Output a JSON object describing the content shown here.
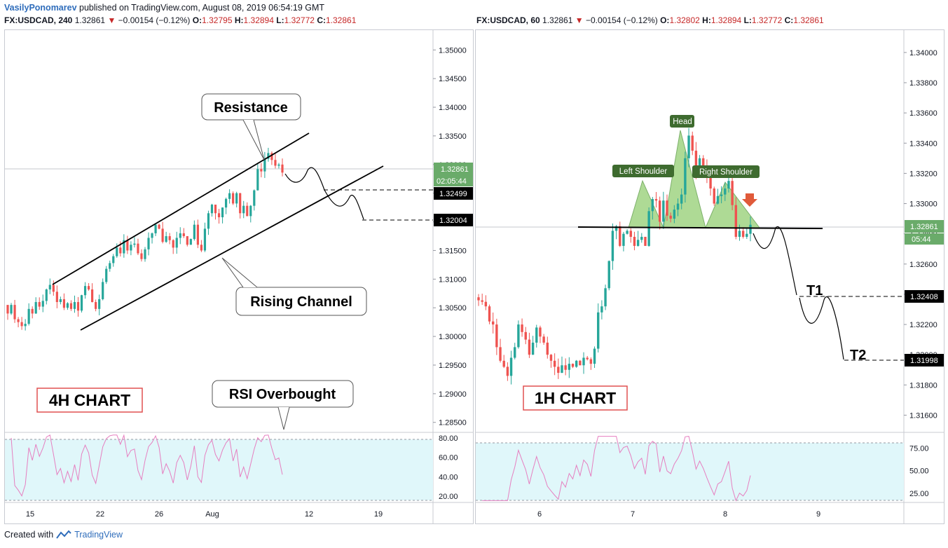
{
  "header": {
    "author": "VasilyPonomarev",
    "published": "published on TradingView.com, August 08, 2019 06:54:19 GMT"
  },
  "footer": {
    "created_with": "Created with",
    "brand": "TradingView"
  },
  "colors": {
    "up": "#26a69a",
    "down": "#ef5350",
    "green_fill": "#a5d68a",
    "rsi_band": "#e0f7fa",
    "rsi_line": "#e67fc0"
  },
  "left": {
    "symbol_line": {
      "sym": "FX:USDCAD, 240",
      "last": "1.32861",
      "change": "−0.00154 (−0.12%)",
      "o_l": "O:",
      "o": "1.32795",
      "h_l": "H:",
      "h": "1.32894",
      "l_l": "L:",
      "l": "1.32772",
      "c_l": "C:",
      "c": "1.32861"
    },
    "price_labels": {
      "last": "1.32861",
      "countdown": "02:05:44",
      "level1": "1.32499",
      "level2": "1.32004"
    },
    "annotations": {
      "resistance": "Resistance",
      "channel": "Rising Channel",
      "rsi": "RSI Overbought",
      "chart_label": "4H CHART"
    }
  },
  "right": {
    "symbol_line": {
      "sym": "FX:USDCAD, 60",
      "last": "1.32861",
      "change": "−0.00154 (−0.12%)",
      "o_l": "O:",
      "o": "1.32802",
      "h_l": "H:",
      "h": "1.32894",
      "l_l": "L:",
      "l": "1.32772",
      "c_l": "C:",
      "c": "1.32861"
    },
    "price_labels": {
      "last": "1.32861",
      "countdown": "05:44",
      "t1_level": "1.32408",
      "t2_level": "1.31998"
    },
    "annotations": {
      "head": "Head",
      "left_shoulder": "Left Shoulder",
      "right_shoulder": "Right Shoulder",
      "t1": "T1",
      "t2": "T2",
      "chart_label": "1H CHART"
    }
  },
  "chart_data": [
    {
      "type": "candlestick",
      "symbol": "FX:USDCAD",
      "interval": "240",
      "ylim": [
        1.2835,
        1.3515
      ],
      "y_ticks": [
        "1.35000",
        "1.34500",
        "1.34000",
        "1.33500",
        "1.33000",
        "1.32500",
        "1.32000",
        "1.31500",
        "1.31000",
        "1.30500",
        "1.30000",
        "1.29500",
        "1.29000",
        "1.28500"
      ],
      "x_ticks": [
        "15",
        "22",
        "26",
        "Aug",
        "12",
        "19"
      ],
      "close_series": [
        1.304,
        1.3055,
        1.303,
        1.3025,
        1.3018,
        1.3022,
        1.3048,
        1.304,
        1.306,
        1.3052,
        1.3062,
        1.3082,
        1.309,
        1.3078,
        1.306,
        1.3065,
        1.305,
        1.3058,
        1.3048,
        1.306,
        1.3045,
        1.3072,
        1.3088,
        1.3082,
        1.306,
        1.3048,
        1.3065,
        1.3095,
        1.3118,
        1.3128,
        1.314,
        1.3155,
        1.3145,
        1.3168,
        1.315,
        1.316,
        1.3162,
        1.3145,
        1.3135,
        1.3152,
        1.3172,
        1.318,
        1.3195,
        1.3188,
        1.3165,
        1.3175,
        1.3168,
        1.3155,
        1.3172,
        1.318,
        1.3175,
        1.316,
        1.317,
        1.3195,
        1.316,
        1.315,
        1.3188,
        1.3215,
        1.323,
        1.3215,
        1.3208,
        1.3225,
        1.324,
        1.325,
        1.3232,
        1.325,
        1.3215,
        1.3228,
        1.321,
        1.3228,
        1.3255,
        1.3292,
        1.3288,
        1.331,
        1.332,
        1.3308,
        1.3298,
        1.33,
        1.3286
      ],
      "rsi": {
        "ylim": [
          15,
          85
        ],
        "ticks": [
          "80.00",
          "60.00",
          "40.00",
          "20.00"
        ],
        "bands": [
          80,
          20
        ]
      }
    },
    {
      "type": "candlestick",
      "symbol": "FX:USDCAD",
      "interval": "60",
      "ylim": [
        1.315,
        1.3412
      ],
      "y_ticks": [
        "1.34000",
        "1.33800",
        "1.33600",
        "1.33400",
        "1.33200",
        "1.33000",
        "1.32800",
        "1.32600",
        "1.32400",
        "1.32200",
        "1.32000",
        "1.31800",
        "1.31600"
      ],
      "x_ticks": [
        "6",
        "7",
        "8",
        "9"
      ],
      "close_series": [
        1.3236,
        1.3235,
        1.3232,
        1.3222,
        1.322,
        1.3205,
        1.3196,
        1.3192,
        1.3186,
        1.3198,
        1.3205,
        1.322,
        1.3215,
        1.321,
        1.32,
        1.3208,
        1.3218,
        1.3212,
        1.3208,
        1.32,
        1.3196,
        1.3192,
        1.3188,
        1.3193,
        1.319,
        1.3194,
        1.3192,
        1.3196,
        1.3193,
        1.3198,
        1.3197,
        1.3194,
        1.3204,
        1.3228,
        1.3232,
        1.3244,
        1.3262,
        1.3282,
        1.3285,
        1.3272,
        1.328,
        1.3282,
        1.3278,
        1.3272,
        1.3276,
        1.3278,
        1.3272,
        1.3295,
        1.3303,
        1.3302,
        1.3288,
        1.3302,
        1.3292,
        1.329,
        1.3296,
        1.33,
        1.3306,
        1.333,
        1.3345,
        1.3335,
        1.3322,
        1.333,
        1.3325,
        1.3318,
        1.331,
        1.33,
        1.3305,
        1.3306,
        1.331,
        1.3315,
        1.3299,
        1.3278,
        1.3282,
        1.3278,
        1.328,
        1.3286
      ],
      "rsi": {
        "ylim": [
          15,
          90
        ],
        "ticks": [
          "75.00",
          "50.00",
          "25.00"
        ],
        "bands": [
          80,
          20
        ]
      }
    }
  ]
}
